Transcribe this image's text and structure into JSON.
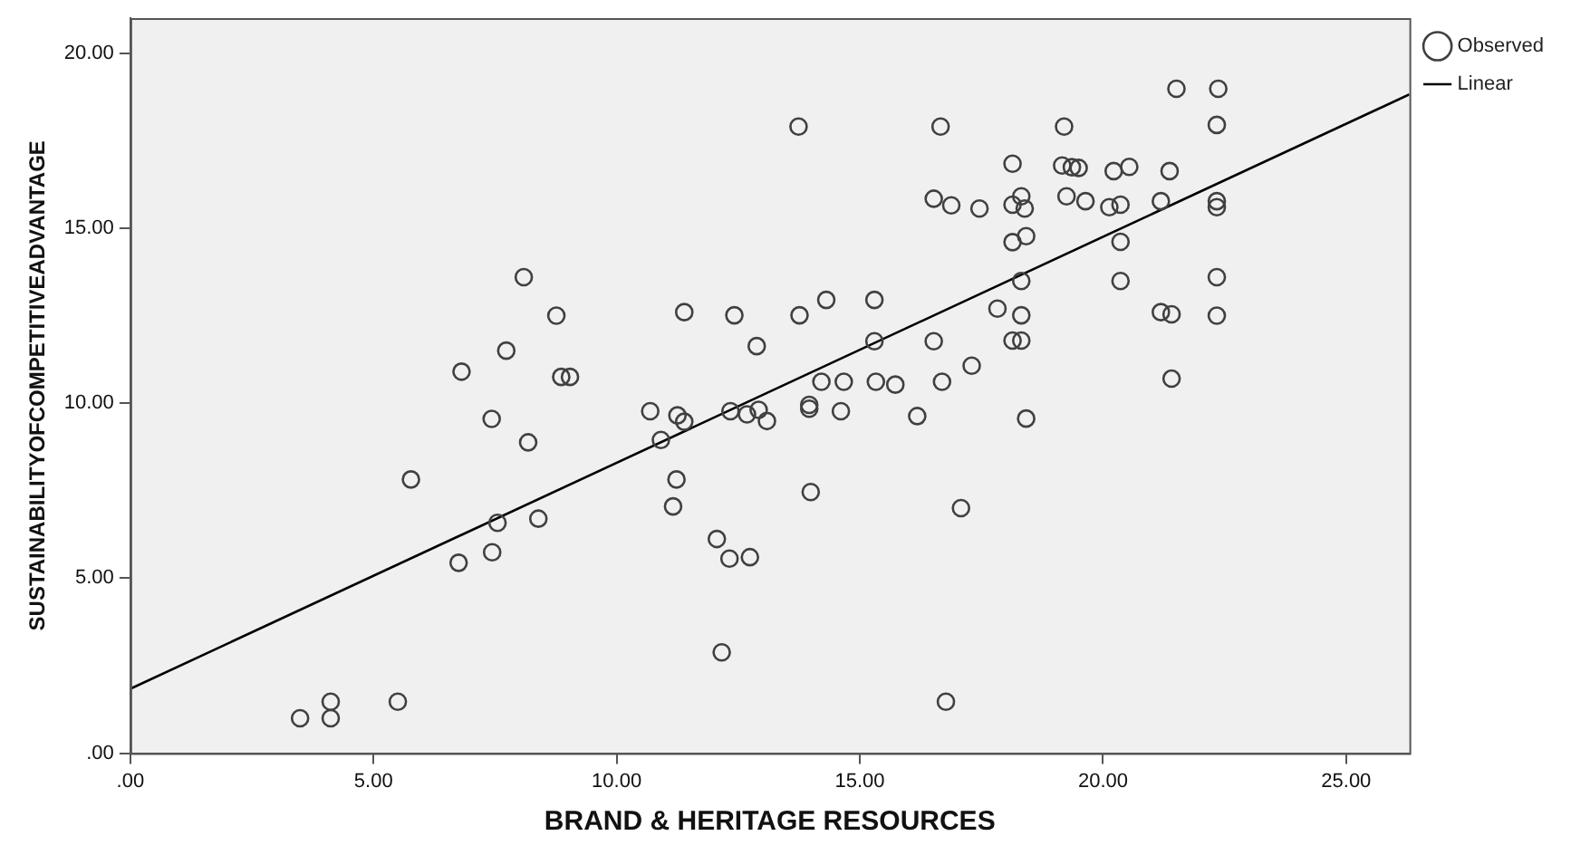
{
  "chart_data": {
    "type": "scatter",
    "xlabel": "BRAND & HERITAGE RESOURCES",
    "ylabel": "SUSTAINABILITYOFCOMPETITIVEADVANTAGE",
    "xlim": [
      0,
      26.3
    ],
    "ylim": [
      0,
      21
    ],
    "xticks": [
      {
        "value": 0,
        "label": ".00"
      },
      {
        "value": 5,
        "label": "5.00"
      },
      {
        "value": 10,
        "label": "10.00"
      },
      {
        "value": 15,
        "label": "15.00"
      },
      {
        "value": 20,
        "label": "20.00"
      },
      {
        "value": 25,
        "label": "25.00"
      }
    ],
    "yticks": [
      {
        "value": 0,
        "label": ".00"
      },
      {
        "value": 5,
        "label": "5.00"
      },
      {
        "value": 10,
        "label": "10.00"
      },
      {
        "value": 15,
        "label": "15.00"
      },
      {
        "value": 20,
        "label": "20.00"
      }
    ],
    "grid": false,
    "legend": "top right",
    "series": [
      {
        "name": "Observed",
        "type": "scatter",
        "marker": "circle",
        "color": "#404040",
        "x": [
          8.09,
          8.76,
          11.39,
          7.73,
          6.81,
          8.86,
          9.04,
          7.43,
          10.69,
          11.25,
          11.39,
          8.18,
          10.91,
          5.77,
          11.23,
          11.16,
          7.55,
          8.39,
          7.44,
          6.75,
          4.12,
          5.5,
          3.49,
          4.12,
          13.74,
          16.66,
          19.2,
          18.14,
          19.16,
          19.36,
          19.5,
          20.22,
          20.54,
          16.52,
          16.88,
          17.46,
          18.14,
          18.32,
          18.39,
          19.25,
          19.64,
          20.13,
          20.36,
          18.14,
          18.42,
          20.36,
          18.32,
          20.36,
          12.42,
          13.76,
          14.31,
          15.3,
          12.88,
          17.83,
          18.32,
          15.3,
          16.52,
          18.14,
          18.32,
          17.3,
          14.21,
          14.67,
          15.33,
          15.73,
          16.69,
          12.34,
          12.68,
          12.92,
          13.09,
          13.96,
          13.96,
          14.61,
          16.18,
          18.42,
          13.99,
          17.08,
          12.06,
          12.32,
          12.74,
          12.16,
          16.77,
          21.51,
          22.37,
          22.34,
          21.37,
          21.19,
          22.34,
          22.34,
          22.34,
          21.19,
          21.41,
          22.34,
          21.41
        ],
        "values": [
          13.6,
          12.5,
          12.6,
          11.5,
          10.9,
          10.75,
          10.75,
          9.55,
          9.77,
          9.65,
          9.47,
          8.88,
          8.95,
          7.82,
          7.82,
          7.05,
          6.58,
          6.7,
          5.74,
          5.44,
          1.47,
          1.47,
          1,
          1,
          17.9,
          17.9,
          17.9,
          16.84,
          16.79,
          16.74,
          16.72,
          16.63,
          16.75,
          15.84,
          15.65,
          15.56,
          15.67,
          15.91,
          15.56,
          15.91,
          15.77,
          15.6,
          15.67,
          14.6,
          14.77,
          14.61,
          13.49,
          13.49,
          12.51,
          12.51,
          12.95,
          12.95,
          11.63,
          12.7,
          12.51,
          11.77,
          11.77,
          11.79,
          11.79,
          11.07,
          10.61,
          10.61,
          10.61,
          10.53,
          10.61,
          9.77,
          9.68,
          9.81,
          9.49,
          9.95,
          9.84,
          9.77,
          9.63,
          9.56,
          7.46,
          7,
          6.12,
          5.56,
          5.6,
          2.88,
          1.47,
          18.98,
          18.98,
          17.95,
          16.63,
          15.77,
          15.77,
          15.6,
          13.6,
          12.6,
          12.54,
          12.5,
          10.7
        ]
      },
      {
        "name": "Linear",
        "type": "line",
        "color": "#000000",
        "line_style": "solid",
        "x": [
          0,
          26.3
        ],
        "values": [
          1.84,
          18.82
        ]
      }
    ]
  }
}
